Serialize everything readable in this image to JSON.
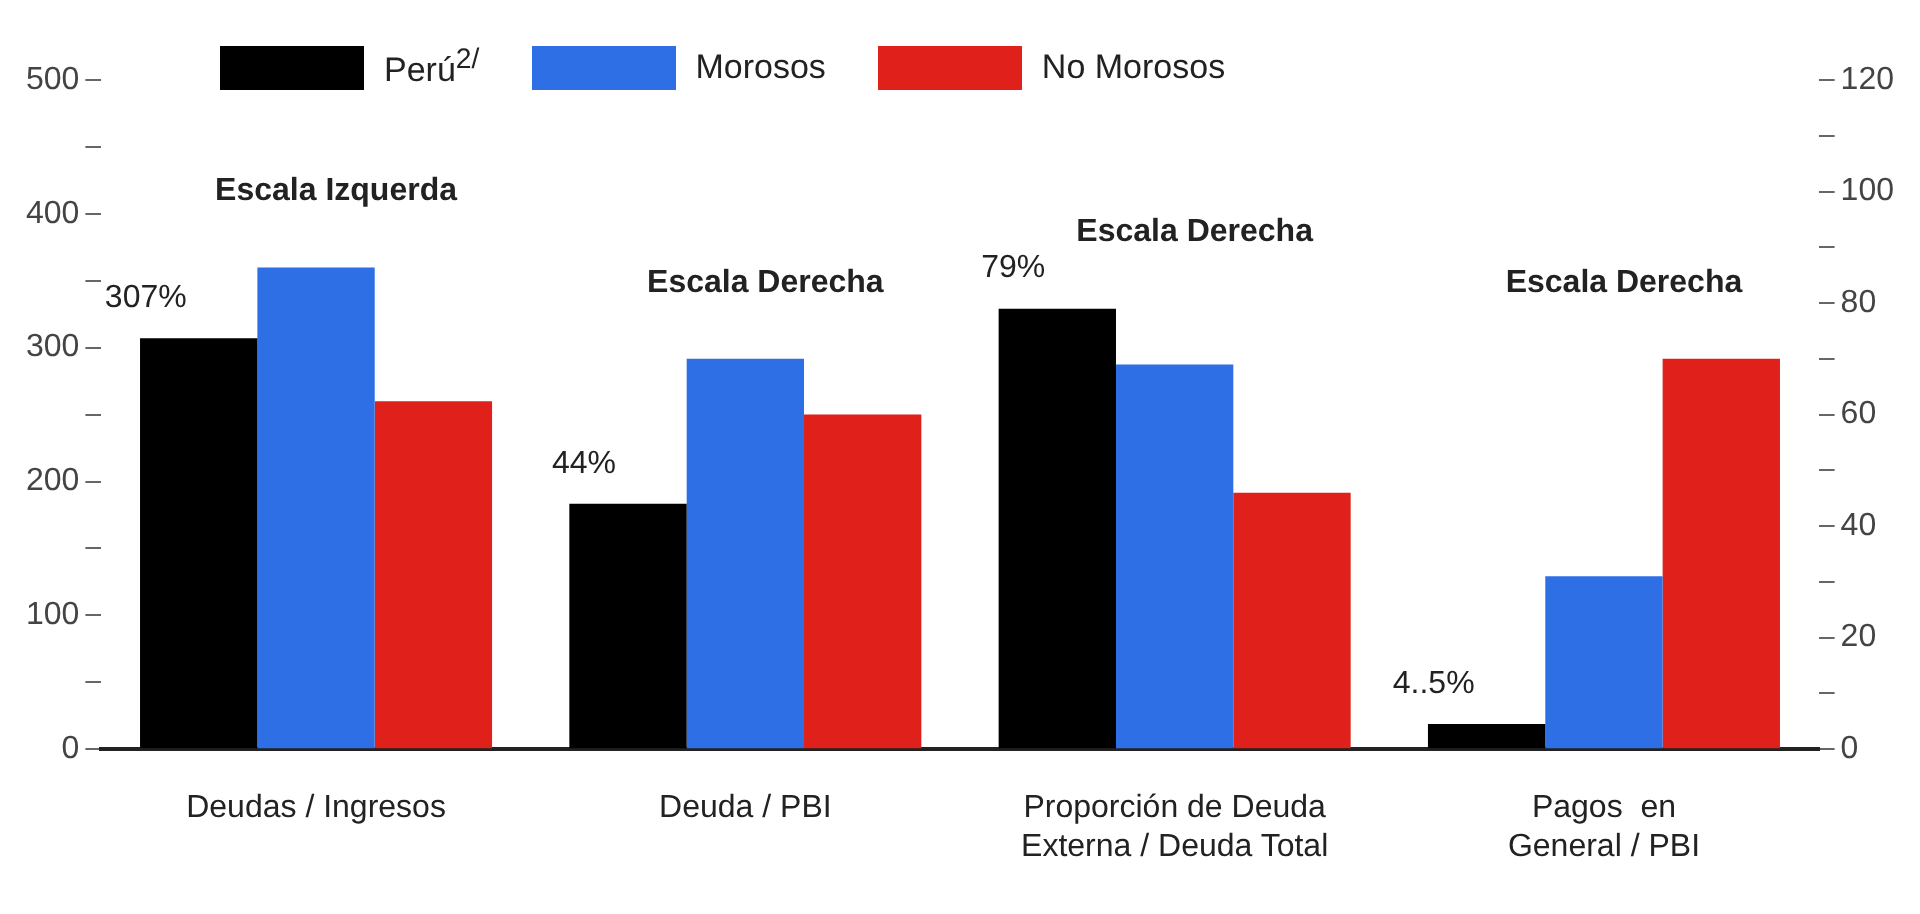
{
  "chart_data": {
    "type": "bar",
    "categories": [
      "Deudas / Ingresos",
      "Deuda / PBI",
      "Proporción de Deuda\nExterna / Deuda Total",
      "Pagos  en\nGeneral / PBI"
    ],
    "series": [
      {
        "name": "Perú$^{2/}$",
        "color": "#000000",
        "values": [
          307,
          null,
          null,
          null
        ],
        "value_labels": [
          "307%",
          null,
          null,
          null
        ]
      },
      {
        "name": "Morosos",
        "color": "#2f6fe6",
        "values": [
          360,
          null,
          null,
          null
        ]
      },
      {
        "name": "No Morosos",
        "color": "#e0201b",
        "values": [
          260,
          null,
          null,
          null
        ]
      },
      {
        "color": "#000000",
        "axis": "y2",
        "values": [
          null,
          44,
          79,
          4.5
        ],
        "value_labels": [
          null,
          "44%",
          "79%",
          "4..5%"
        ]
      },
      {
        "color": "#2f6fe6",
        "axis": "y2",
        "values": [
          null,
          70,
          69,
          31
        ]
      },
      {
        "color": "#e0201b",
        "axis": "y2",
        "values": [
          null,
          60,
          46,
          70
        ]
      }
    ],
    "ylim": [
      0,
      500
    ],
    "yticks": [
      0,
      {
        "value": 50,
        "label": null
      },
      100,
      {
        "value": 150,
        "label": null
      },
      200,
      {
        "value": 250,
        "label": null
      },
      300,
      {
        "value": 350,
        "label": null
      },
      400,
      {
        "value": 450,
        "label": null
      },
      500
    ],
    "y2lim": [
      0,
      120
    ],
    "y2ticks": [
      0,
      {
        "value": 10,
        "label": null
      },
      20,
      {
        "value": 30,
        "label": null
      },
      40,
      {
        "value": 50,
        "label": null
      },
      60,
      {
        "value": 70,
        "label": null
      },
      80,
      {
        "value": 90,
        "label": null
      },
      100,
      {
        "value": 110,
        "label": null
      },
      120
    ],
    "annotations": [
      "Escala Izquerda",
      "Escala Derecha",
      "Escala Derecha",
      "Escala Derecha"
    ],
    "grid": false,
    "legend": "top"
  }
}
